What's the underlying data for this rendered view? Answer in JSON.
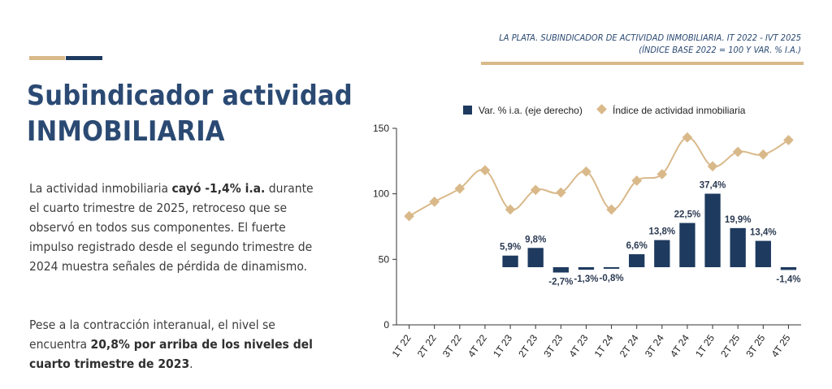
{
  "page": {
    "title_line1": "Subindicador actividad",
    "title_line2": "INMOBILIARIA",
    "para1": {
      "pre": "La actividad inmobiliaria ",
      "bold": "cayó -1,4% i.a.",
      "post": " durante el cuarto trimestre de 2025, retroceso que se observó en todos sus componentes. El fuerte impulso registrado desde el segundo trimestre de 2024 muestra señales de pérdida de dinamismo."
    },
    "para2": {
      "pre": "Pese a la contracción interanual, el nivel se encuentra ",
      "bold": "20,8% por arriba de los niveles del cuarto trimestre de 2023",
      "post": "."
    }
  },
  "chart_header": {
    "line1": "LA PLATA. SUBINDICADOR DE ACTIVIDAD INMOBILIARIA. IT 2022 - IVT 2025",
    "line2": "(ÍNDICE BASE 2022 = 100 Y VAR. % I.A.)"
  },
  "colors": {
    "bar": "#1e3a5f",
    "line": "#d9b98a",
    "title": "#2b4a73",
    "axis": "#333333"
  },
  "chart_data": {
    "type": "bar+line",
    "categories": [
      "1T 22",
      "2T 22",
      "3T 22",
      "4T 22",
      "1T 23",
      "2T 23",
      "3T 23",
      "4T 23",
      "1T 24",
      "2T 24",
      "3T 24",
      "4T 24",
      "1T 25",
      "2T 25",
      "3T 25",
      "4T 25"
    ],
    "series": [
      {
        "name": "Var. % i.a. (eje derecho)",
        "type": "bar",
        "axis": "right",
        "values": [
          null,
          null,
          null,
          null,
          5.9,
          9.8,
          -2.7,
          -1.3,
          -0.8,
          6.6,
          13.8,
          22.5,
          37.4,
          19.9,
          13.4,
          -1.4
        ],
        "labels": [
          "",
          "",
          "",
          "",
          "5,9%",
          "9,8%",
          "-2,7%",
          "-1,3%",
          "-0,8%",
          "6,6%",
          "13,8%",
          "22,5%",
          "37,4%",
          "19,9%",
          "13,4%",
          "-1,4%"
        ]
      },
      {
        "name": "Índice de actividad inmobiliaria",
        "type": "line",
        "axis": "left",
        "values": [
          83,
          94,
          104,
          118,
          88,
          103,
          101,
          117,
          88,
          110,
          115,
          143,
          121,
          132,
          130,
          141
        ]
      }
    ],
    "left_axis": {
      "ticks": [
        "0",
        "50",
        "100",
        "150"
      ],
      "ylim": [
        0,
        150
      ]
    },
    "right_axis": {
      "zero_at_left": 44,
      "scale_left_per_pct": 1.5
    },
    "legend_position": "top"
  }
}
